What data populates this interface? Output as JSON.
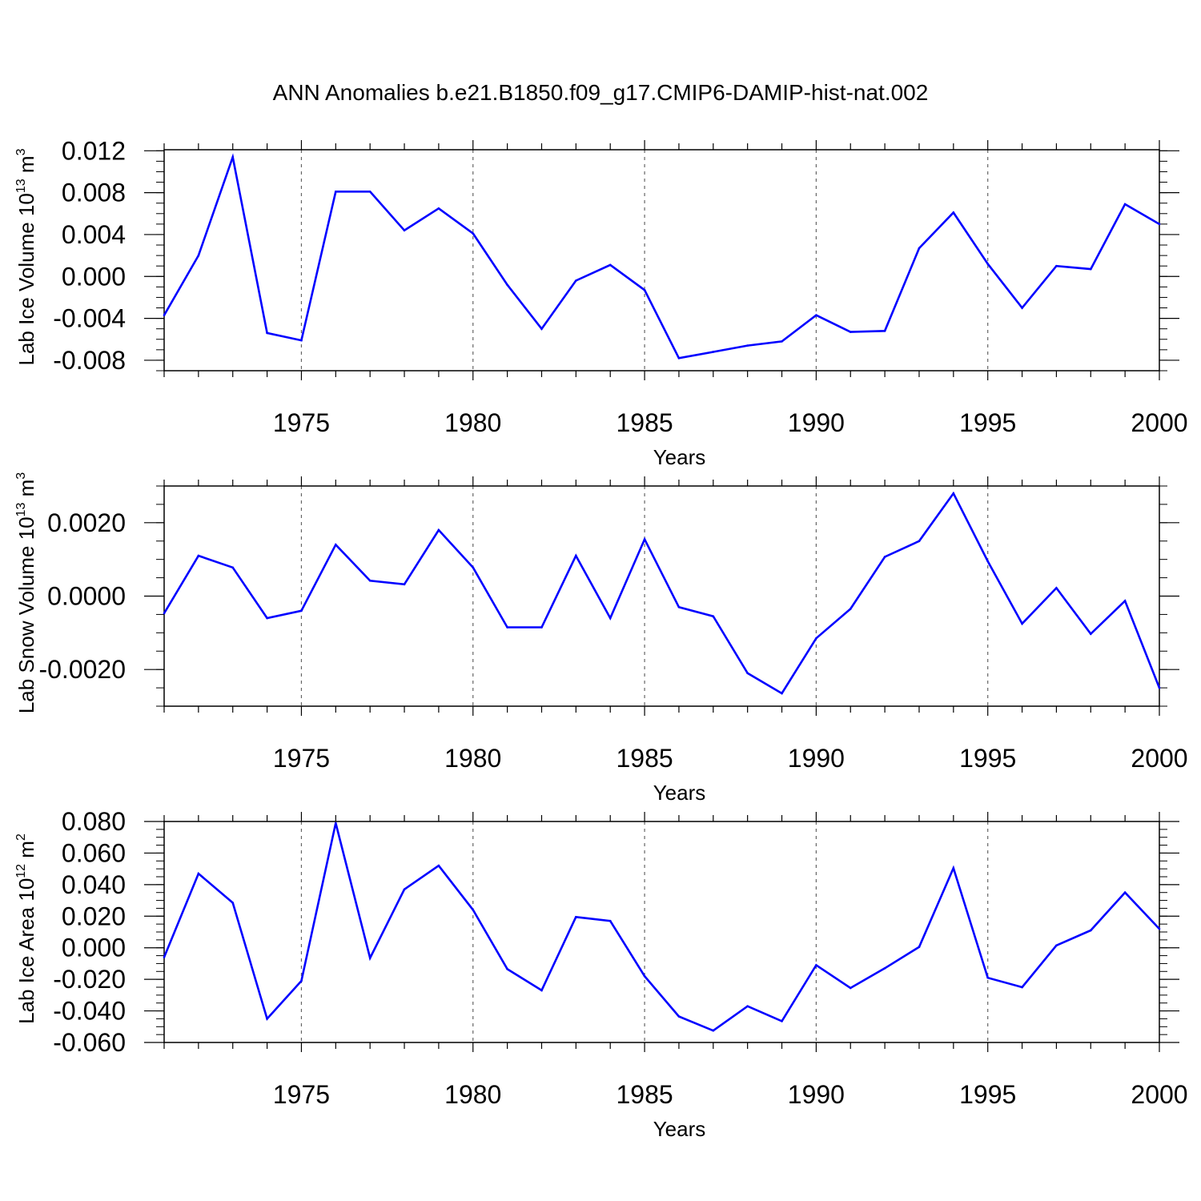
{
  "title": "ANN Anomalies b.e21.B1850.f09_g17.CMIP6-DAMIP-hist-nat.002",
  "colors": {
    "line": "#0000ff",
    "axis": "#000000",
    "grid": "#666666"
  },
  "chart_data": [
    {
      "type": "line",
      "ylabel": "Lab Ice Volume 10",
      "ylabel_exp": "13",
      "ylabel_unit": " m",
      "ylabel_unit_exp": "3",
      "xlabel": "Years",
      "xlim": [
        1971,
        2000
      ],
      "ylim": [
        -0.009,
        0.0121
      ],
      "xticks": [
        1975,
        1980,
        1985,
        1990,
        1995,
        2000
      ],
      "xtick_labels": [
        "1975",
        "1980",
        "1985",
        "1990",
        "1995",
        "2000"
      ],
      "yticks": [
        -0.008,
        -0.004,
        0.0,
        0.004,
        0.008,
        0.012
      ],
      "ytick_labels": [
        "-0.008",
        "-0.004",
        "0.000",
        "0.004",
        "0.008",
        "0.012"
      ],
      "x": [
        1971,
        1972,
        1973,
        1974,
        1975,
        1976,
        1977,
        1978,
        1979,
        1980,
        1981,
        1982,
        1983,
        1984,
        1985,
        1986,
        1987,
        1988,
        1989,
        1990,
        1991,
        1992,
        1993,
        1994,
        1995,
        1996,
        1997,
        1998,
        1999,
        2000
      ],
      "values": [
        -0.0037,
        0.002,
        0.0114,
        -0.0054,
        -0.0061,
        0.0081,
        0.0081,
        0.0044,
        0.0065,
        0.0041,
        -0.0008,
        -0.005,
        -0.0004,
        0.0011,
        -0.0013,
        -0.0078,
        -0.0072,
        -0.0066,
        -0.0062,
        -0.0037,
        -0.0053,
        -0.0052,
        0.0027,
        0.0061,
        0.0012,
        -0.003,
        0.001,
        0.0007,
        0.0069,
        0.005
      ]
    },
    {
      "type": "line",
      "ylabel": "Lab Snow Volume 10",
      "ylabel_exp": "13",
      "ylabel_unit": " m",
      "ylabel_unit_exp": "3",
      "xlabel": "Years",
      "xlim": [
        1971,
        2000
      ],
      "ylim": [
        -0.003,
        0.003
      ],
      "xticks": [
        1975,
        1980,
        1985,
        1990,
        1995,
        2000
      ],
      "xtick_labels": [
        "1975",
        "1980",
        "1985",
        "1990",
        "1995",
        "2000"
      ],
      "yticks": [
        -0.002,
        0.0,
        0.002
      ],
      "ytick_labels": [
        "-0.0020",
        "0.0000",
        "0.0020"
      ],
      "x": [
        1971,
        1972,
        1973,
        1974,
        1975,
        1976,
        1977,
        1978,
        1979,
        1980,
        1981,
        1982,
        1983,
        1984,
        1985,
        1986,
        1987,
        1988,
        1989,
        1990,
        1991,
        1992,
        1993,
        1994,
        1995,
        1996,
        1997,
        1998,
        1999,
        2000
      ],
      "values": [
        -0.00047,
        0.0011,
        0.00078,
        -0.0006,
        -0.0004,
        0.0014,
        0.00042,
        0.00032,
        0.0018,
        0.00078,
        -0.00085,
        -0.00085,
        0.0011,
        -0.0006,
        0.00155,
        -0.0003,
        -0.00055,
        -0.0021,
        -0.00265,
        -0.00115,
        -0.00035,
        0.00107,
        0.0015,
        0.0028,
        0.00095,
        -0.00075,
        0.00022,
        -0.00103,
        -0.00013,
        -0.0025
      ]
    },
    {
      "type": "line",
      "ylabel": "Lab Ice Area 10",
      "ylabel_exp": "12",
      "ylabel_unit": " m",
      "ylabel_unit_exp": "2",
      "xlabel": "Years",
      "xlim": [
        1971,
        2000
      ],
      "ylim": [
        -0.06,
        0.08
      ],
      "xticks": [
        1975,
        1980,
        1985,
        1990,
        1995,
        2000
      ],
      "xtick_labels": [
        "1975",
        "1980",
        "1985",
        "1990",
        "1995",
        "2000"
      ],
      "yticks": [
        -0.06,
        -0.04,
        -0.02,
        0.0,
        0.02,
        0.04,
        0.06,
        0.08
      ],
      "ytick_labels": [
        "-0.060",
        "-0.040",
        "-0.020",
        "0.000",
        "0.020",
        "0.040",
        "0.060",
        "0.080"
      ],
      "x": [
        1971,
        1972,
        1973,
        1974,
        1975,
        1976,
        1977,
        1978,
        1979,
        1980,
        1981,
        1982,
        1983,
        1984,
        1985,
        1986,
        1987,
        1988,
        1989,
        1990,
        1991,
        1992,
        1993,
        1994,
        1995,
        1996,
        1997,
        1998,
        1999,
        2000
      ],
      "values": [
        -0.006,
        0.047,
        0.0285,
        -0.045,
        -0.021,
        0.079,
        -0.0065,
        0.037,
        0.052,
        0.024,
        -0.0135,
        -0.027,
        0.0195,
        0.017,
        -0.018,
        -0.0435,
        -0.0525,
        -0.037,
        -0.0465,
        -0.011,
        -0.0255,
        -0.013,
        0.0005,
        0.0505,
        -0.019,
        -0.025,
        0.0015,
        0.011,
        0.035,
        0.012
      ]
    }
  ]
}
